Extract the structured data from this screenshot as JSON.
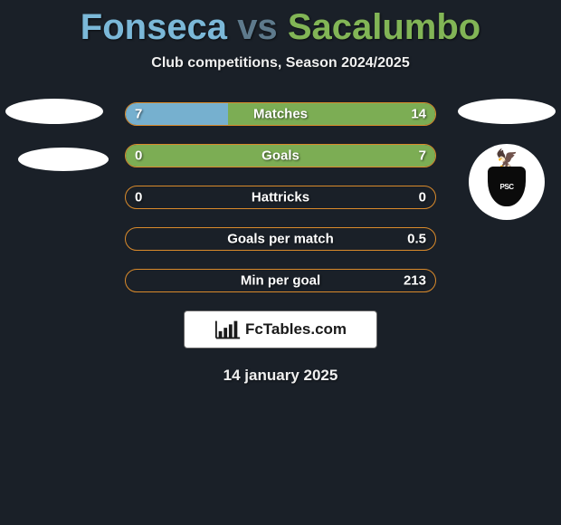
{
  "title": {
    "player_a": "Fonseca",
    "vs": "vs",
    "player_b": "Sacalumbo",
    "color_a": "#7bb8d8",
    "color_vs": "#5e7a8c",
    "color_b": "#82b556"
  },
  "subtitle": "Club competitions, Season 2024/2025",
  "rows": [
    {
      "label": "Matches",
      "left": "7",
      "right": "14",
      "left_pct": 33,
      "right_pct": 67
    },
    {
      "label": "Goals",
      "left": "0",
      "right": "7",
      "left_pct": 0,
      "right_pct": 100
    },
    {
      "label": "Hattricks",
      "left": "0",
      "right": "0",
      "left_pct": 0,
      "right_pct": 0
    },
    {
      "label": "Goals per match",
      "left": "",
      "right": "0.5",
      "left_pct": 0,
      "right_pct": 0
    },
    {
      "label": "Min per goal",
      "left": "",
      "right": "213",
      "left_pct": 0,
      "right_pct": 0
    }
  ],
  "row_style": {
    "border_color": "#d98a2b",
    "fill_left_color": "#7bb8d8",
    "fill_right_color": "#82b556"
  },
  "credit": "FcTables.com",
  "date": "14 january 2025",
  "crest_text": "PSC",
  "background_color": "#1a2028"
}
